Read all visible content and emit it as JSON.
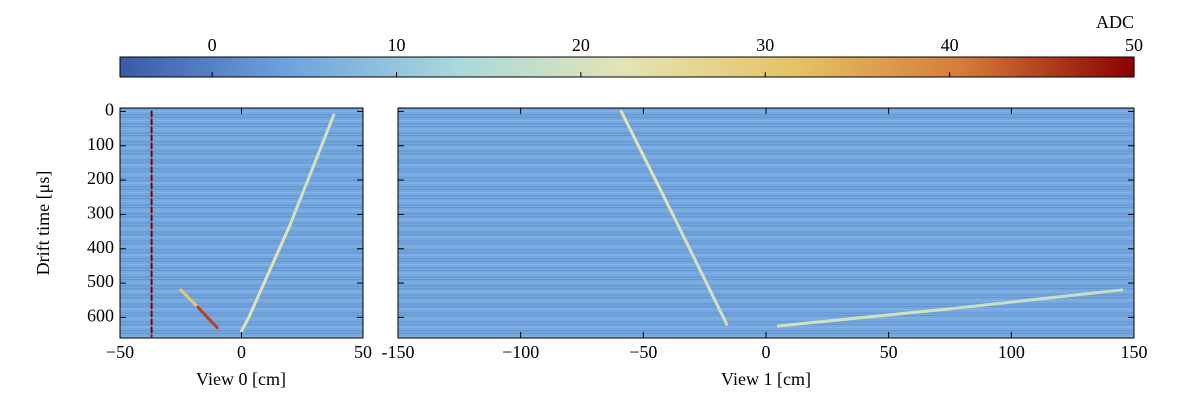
{
  "chart_data": [
    {
      "type": "colorbar",
      "label": "ADC",
      "clim": [
        -5,
        50
      ],
      "ticks": [
        0,
        10,
        20,
        30,
        40,
        50
      ],
      "colormap": [
        "#3a5aa8",
        "#6fa3de",
        "#a9d9dc",
        "#e4e4b4",
        "#e5c265",
        "#d47a3a",
        "#8a0000"
      ]
    },
    {
      "type": "heatmap",
      "ylabel": "Drift time [μs]",
      "xlabel": "View 0 [cm]",
      "background_adc": 5,
      "xlim": [
        -50,
        50
      ],
      "xticks": [
        {
          "value": -50,
          "label": "−50"
        },
        0,
        50
      ],
      "ylim": [
        660,
        -10
      ],
      "yticks": [
        0,
        100,
        200,
        300,
        400,
        500,
        600
      ],
      "ytick_labels": true,
      "tracks": [
        {
          "x": [
            -37,
            -37
          ],
          "y": [
            0,
            655
          ],
          "adc": [
            50,
            50
          ],
          "style": "dashed"
        },
        {
          "x": [
            0,
            3,
            20,
            38
          ],
          "y": [
            640,
            600,
            330,
            10
          ],
          "adc": [
            22,
            22,
            20,
            25
          ],
          "style": "solid"
        },
        {
          "x": [
            -25,
            -18,
            -10
          ],
          "y": [
            520,
            570,
            630
          ],
          "adc": [
            30,
            45,
            48
          ],
          "style": "solid"
        }
      ]
    },
    {
      "type": "heatmap",
      "xlabel": "View 1 [cm]",
      "background_adc": 5,
      "xlim": [
        -150,
        150
      ],
      "xticks": [
        {
          "value": -150,
          "label": "-150"
        },
        {
          "value": -100,
          "label": "−100"
        },
        {
          "value": -50,
          "label": "−50"
        },
        0,
        50,
        100,
        150
      ],
      "ylim": [
        660,
        -10
      ],
      "yticks": [
        0,
        100,
        200,
        300,
        400,
        500,
        600
      ],
      "ytick_labels": false,
      "tracks": [
        {
          "x": [
            -59,
            -38,
            -16
          ],
          "y": [
            0,
            300,
            620
          ],
          "adc": [
            22,
            20,
            24
          ],
          "style": "solid"
        },
        {
          "x": [
            5,
            75,
            145
          ],
          "y": [
            625,
            575,
            520
          ],
          "adc": [
            20,
            18,
            20
          ],
          "style": "solid"
        }
      ]
    }
  ]
}
